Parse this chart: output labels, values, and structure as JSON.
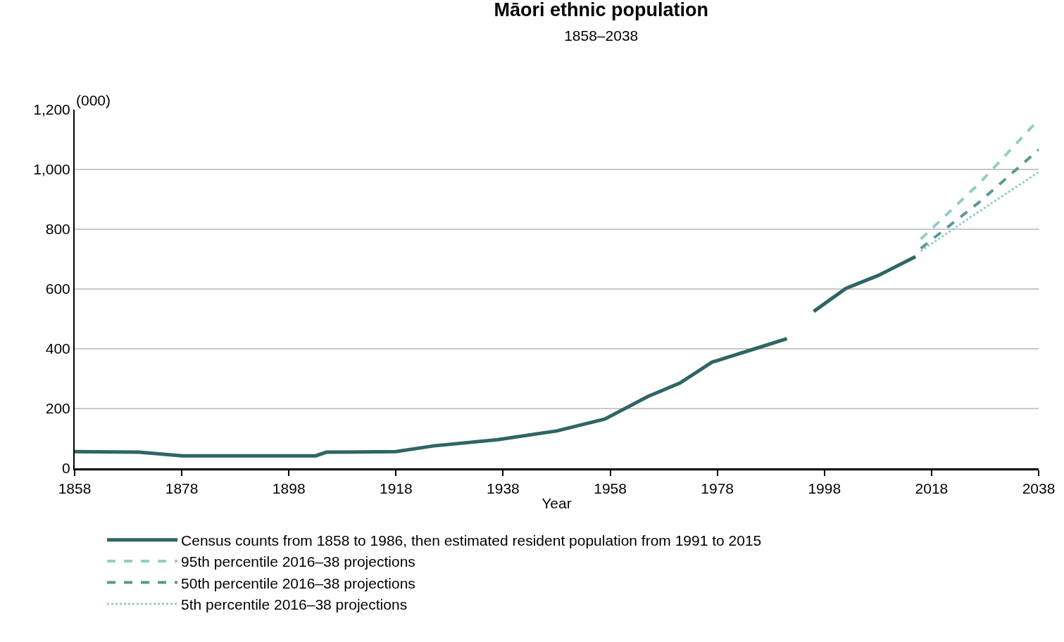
{
  "chart_data": {
    "type": "line",
    "title": "Māori ethnic population",
    "subtitle": "1858–2038",
    "xlabel": "Year",
    "ylabel": "(000)",
    "xlim": [
      1858,
      2038
    ],
    "xticks": [
      1858,
      1878,
      1898,
      1918,
      1938,
      1958,
      1978,
      1998,
      2018,
      2038
    ],
    "ylim": [
      0,
      1200
    ],
    "yticks": [
      0,
      {
        "value": 200,
        "label": "200"
      },
      {
        "value": 400,
        "label": "400"
      },
      {
        "value": 600,
        "label": "600"
      },
      {
        "value": 800,
        "label": "800"
      },
      {
        "value": 1000,
        "label": "1,000"
      },
      {
        "value": 1200,
        "label": "1,200"
      }
    ],
    "grid": "y",
    "legend": "bottom",
    "marker": "none",
    "series": [
      {
        "name": "Census counts from 1858 to 1986, then estimated resident population from 1991 to 2015",
        "color": "#2e6664",
        "line_style": "solid",
        "x": [
          1858,
          1870,
          1878,
          1903,
          1905,
          1918,
          1925,
          1937,
          1948,
          1957,
          1965,
          1971,
          1977,
          1985,
          1991,
          1993,
          1996,
          2002,
          2008,
          2015
        ],
        "values": [
          56,
          54,
          42,
          42,
          54,
          56,
          75,
          96,
          125,
          165,
          240,
          285,
          355,
          400,
          434,
          null,
          525,
          602,
          645,
          708
        ]
      },
      {
        "name": "95th percentile 2016–38 projections",
        "color": "#93cdc9",
        "line_style": "dashed",
        "x": [
          2016,
          2027,
          2038
        ],
        "values": [
          767,
          955,
          1167
        ]
      },
      {
        "name": "50th percentile 2016–38 projections",
        "color": "#5a9795",
        "line_style": "dashed",
        "x": [
          2016,
          2027,
          2038
        ],
        "values": [
          736,
          892,
          1066
        ]
      },
      {
        "name": "5th percentile 2016–38 projections",
        "color": "#93cdc9",
        "line_style": "dotted",
        "x": [
          2016,
          2027,
          2038
        ],
        "values": [
          727,
          861,
          991
        ]
      }
    ]
  }
}
